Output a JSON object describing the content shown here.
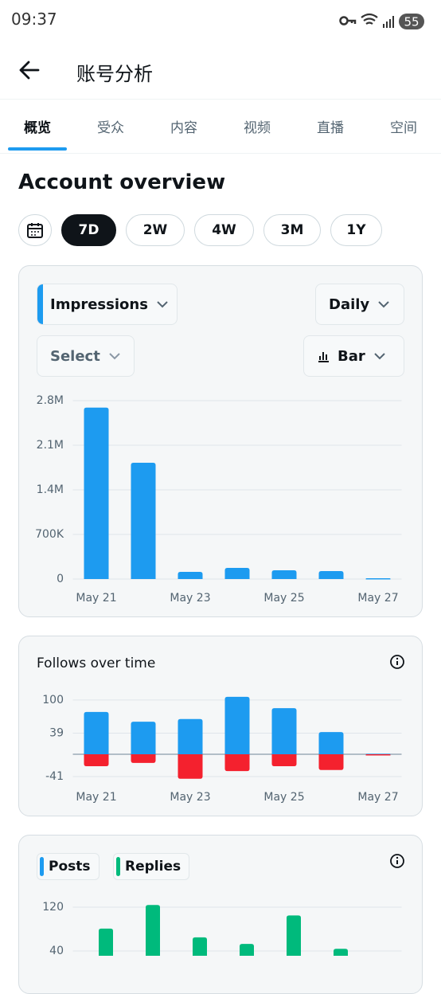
{
  "status_bar": {
    "time": "09:37",
    "battery": "55"
  },
  "header": {
    "title": "账号分析"
  },
  "tabs": [
    "概览",
    "受众",
    "内容",
    "视频",
    "直播",
    "空间"
  ],
  "heading": "Account overview",
  "ranges": [
    "7D",
    "2W",
    "4W",
    "3M",
    "1Y"
  ],
  "impressions_card": {
    "metric": "Impressions",
    "interval": "Daily",
    "compare": "Select",
    "style": "Bar"
  },
  "chart_data": [
    {
      "type": "bar",
      "categories": [
        "May 21",
        null,
        "May 23",
        null,
        "May 25",
        null,
        "May 27"
      ],
      "values": [
        2690000,
        1825000,
        112000,
        175000,
        137000,
        125000,
        12000
      ],
      "color": "#1d9bf0",
      "ylim": [
        0,
        2800000
      ],
      "yticks": [
        0,
        {
          "value": 700000,
          "label": "700K"
        },
        {
          "value": 1400000,
          "label": "1.4M"
        },
        {
          "value": 2100000,
          "label": "2.1M"
        },
        {
          "value": 2800000,
          "label": "2.8M"
        }
      ],
      "grid": true
    },
    {
      "type": "bar",
      "title": "Follows over time",
      "stacked": true,
      "categories": [
        "May 21",
        null,
        "May 23",
        null,
        "May 25",
        null,
        "May 27"
      ],
      "series": [
        {
          "color": "#1d9bf0",
          "values": [
            78,
            60,
            65,
            106,
            85,
            41,
            1
          ]
        },
        {
          "color": "#f4212e",
          "values": [
            -22,
            -16,
            -45,
            -31,
            -22,
            -29,
            0
          ]
        }
      ],
      "ylim": [
        -55,
        110
      ],
      "yticks": [
        -41,
        39,
        100
      ],
      "grid": true
    },
    {
      "type": "bar",
      "stacked": false,
      "series": [
        {
          "name": "Posts",
          "color": "#1d9bf0",
          "values": [
            null,
            null,
            null,
            null,
            null,
            null,
            null
          ]
        },
        {
          "name": "Replies",
          "color": "#00ba7c",
          "values": [
            81,
            124,
            65,
            53,
            105,
            44,
            null
          ]
        }
      ],
      "ylim": [
        0,
        140
      ],
      "yticks": [
        40,
        120
      ],
      "grid": true
    }
  ]
}
